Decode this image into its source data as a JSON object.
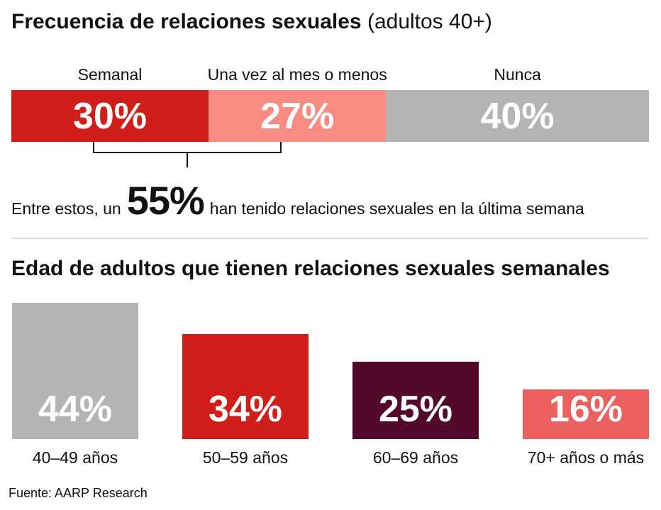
{
  "chart_data": [
    {
      "type": "bar",
      "orientation": "horizontal-stacked",
      "title": "Frecuencia de relaciones sexuales",
      "subtitle": "(adultos 40+)",
      "unit": "%",
      "segments": [
        {
          "name": "Semanal",
          "value": 30,
          "label": "30%",
          "color": "#d01f1a"
        },
        {
          "name": "Una vez al mes o menos",
          "value": 27,
          "label": "27%",
          "color": "#f88b82"
        },
        {
          "name": "Nunca",
          "value": 40,
          "label": "40%",
          "color": "#b4b4b4"
        }
      ],
      "annotation": {
        "prefix": "Entre estos, un",
        "value": "55%",
        "suffix": "han tenido relaciones sexuales en la última semana"
      }
    },
    {
      "type": "bar",
      "title": "Edad de adultos que tienen relaciones sexuales semanales",
      "unit": "%",
      "ylim": [
        0,
        44
      ],
      "categories": [
        "40–49 años",
        "50–59 años",
        "60–69 años",
        "70+ años o más"
      ],
      "values": [
        44,
        34,
        25,
        16
      ],
      "value_labels": [
        "44%",
        "34%",
        "25%",
        "16%"
      ],
      "colors": [
        "#b4b4b4",
        "#d01f1a",
        "#52092c",
        "#ec6060"
      ],
      "grid": false
    }
  ],
  "source": "Fuente: AARP Research"
}
